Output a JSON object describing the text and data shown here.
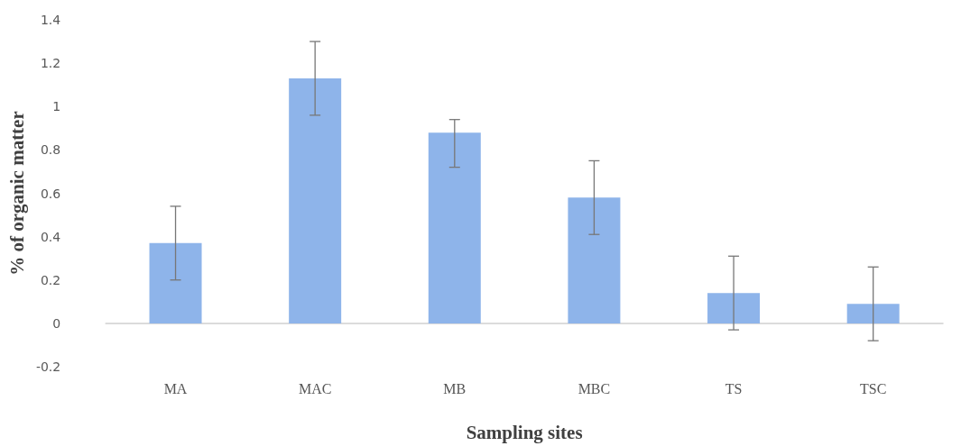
{
  "chart_data": {
    "type": "bar",
    "xlabel": "Sampling sites",
    "ylabel": "% of organic matter",
    "categories": [
      "MA",
      "MAC",
      "MB",
      "MBC",
      "TS",
      "TSC"
    ],
    "values": [
      0.37,
      1.13,
      0.88,
      0.58,
      0.14,
      0.09
    ],
    "errors": [
      0.17,
      0.17,
      [
        0.72,
        0.94
      ],
      0.17,
      0.17,
      0.17
    ],
    "color": "#8eb4ea",
    "ylim": [
      -0.2,
      1.4
    ],
    "yticks": [
      -0.2,
      0,
      0.2,
      0.4,
      0.6,
      0.8,
      1,
      1.2,
      1.4
    ]
  }
}
